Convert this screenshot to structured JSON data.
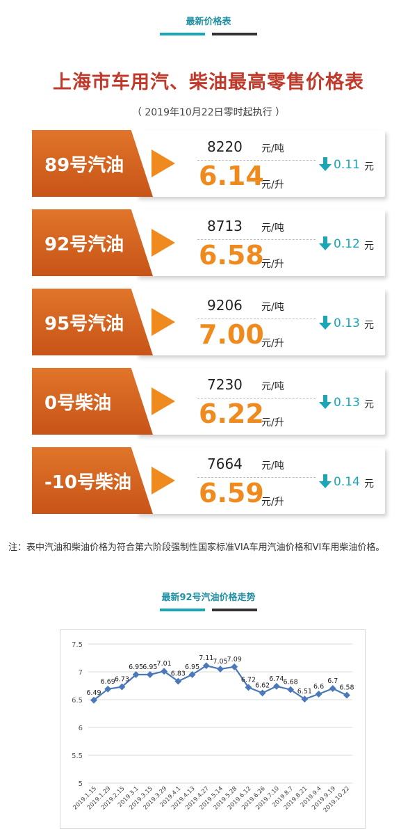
{
  "header1": {
    "title": "最新价格表"
  },
  "price_table": {
    "title": "上海市车用汽、柴油最高零售价格表",
    "subtitle": "（ 2019年10月22日零时起执行 ）",
    "ton_unit": "元/吨",
    "liter_unit": "元/升",
    "change_unit": "元",
    "rows": [
      {
        "name": "89号汽油",
        "ton": "8220",
        "liter": "6.14",
        "change": "0.11"
      },
      {
        "name": "92号汽油",
        "ton": "8713",
        "liter": "6.58",
        "change": "0.12"
      },
      {
        "name": "95号汽油",
        "ton": "9206",
        "liter": "7.00",
        "change": "0.13"
      },
      {
        "name": "0号柴油",
        "ton": "7230",
        "liter": "6.22",
        "change": "0.13"
      },
      {
        "name": "-10号柴油",
        "ton": "7664",
        "liter": "6.59",
        "change": "0.14"
      }
    ],
    "direction": "down",
    "colors": {
      "label": "#d4621f",
      "accent": "#ef8a1e",
      "change": "#1aa6b7"
    }
  },
  "note": "注：表中汽油和柴油价格为符合第六阶段强制性国家标准VIA车用汽油价格和VI车用柴油价格。",
  "header2": {
    "title": "最新92号汽油价格走势"
  },
  "chart_data": {
    "type": "line",
    "title": "",
    "xlabel": "",
    "ylabel": "",
    "categories": [
      "2019.1.15",
      "2019.1.29",
      "2019.2.15",
      "2019.3.1",
      "2019.3.15",
      "2019.3.29",
      "2019.4.1",
      "2019.4.13",
      "2019.4.27",
      "2019.5.14",
      "2019.5.28",
      "2019.6.12",
      "2019.6.26",
      "2019.7.10",
      "2019.8.7",
      "2019.8.21",
      "2019.9.4",
      "2019.9.19",
      "2019.10.22"
    ],
    "values": [
      6.49,
      6.69,
      6.73,
      6.95,
      6.95,
      7.01,
      6.83,
      6.95,
      7.11,
      7.05,
      7.09,
      6.72,
      6.62,
      6.74,
      6.68,
      6.51,
      6.6,
      6.7,
      6.58
    ],
    "ylim": [
      5,
      7.5
    ],
    "yticks": [
      "5",
      "5.5",
      "6",
      "6.5",
      "7",
      "7.5"
    ],
    "grid": true,
    "line_color": "#4a78b8"
  }
}
